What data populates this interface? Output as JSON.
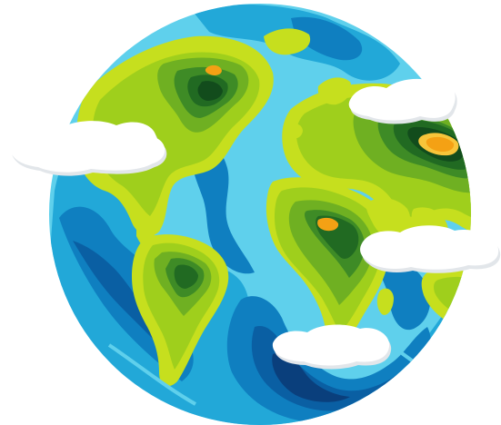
{
  "illustration": {
    "subject": "globe-icon",
    "colors": {
      "background": "#ffffff",
      "rim": "#ffffff",
      "ocean_light": "#5fd0ec",
      "ocean_mid": "#22a8d8",
      "ocean_deep": "#0f7fc0",
      "ocean_darker": "#0a5fa3",
      "ocean_darkest": "#0a3f7c",
      "land_lime": "#c6df1e",
      "land_yellow_green": "#9fcf1c",
      "land_green": "#6fb022",
      "land_mid_green": "#3e8b26",
      "land_dark_green": "#216a22",
      "land_darkest": "#124c1c",
      "peak_orange": "#f4a114",
      "peak_amber": "#f7c53a",
      "cloud": "#ffffff",
      "cloud_shadow": "#e2e6ea"
    }
  }
}
